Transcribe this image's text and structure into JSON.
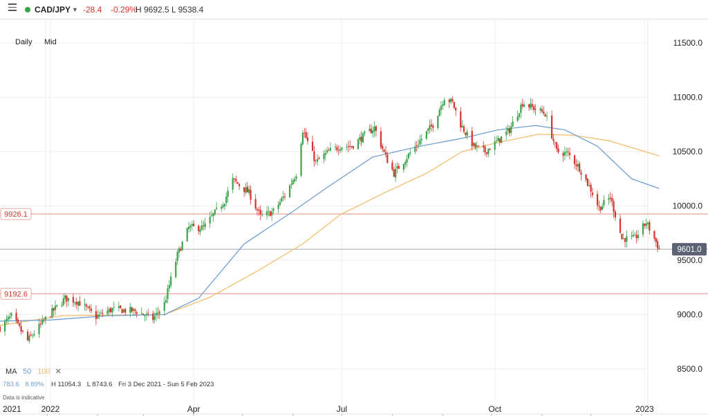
{
  "header": {
    "symbol": "CAD/JPY",
    "change": "-28.4",
    "change_pct": "-0.29%",
    "high_low": "H 9692.5  L 9538.4",
    "status_color": "#3aa34a",
    "menu_icon": "hamburger-menu-icon",
    "dropdown_icon": "caret-down-icon"
  },
  "chart_meta": {
    "interval": "Daily",
    "price_type": "Mid",
    "ma_label": "MA",
    "ma50_label": "50",
    "ma100_label": "100",
    "ma_close_icon": "close-icon",
    "stats_left1": "783.6",
    "stats_left2": "8.89%",
    "stats_high": "H 11054.3",
    "stats_low": "L 8743.6",
    "stats_range": "Fri 3 Dec 2021 - Sun 5 Feb 2023",
    "disclaimer": "Data is indicative",
    "colors": {
      "up": "#3aa34a",
      "down": "#d9312b",
      "ma50": "#6f9fd1",
      "ma100": "#f2be6e",
      "hline": "#e58a84",
      "last": "#5a6274",
      "axis": "#222222"
    }
  },
  "chart_data": {
    "type": "candlestick",
    "y_ticks": [
      8500.0,
      9000.0,
      9500.0,
      10000.0,
      10500.0,
      11000.0,
      11500.0
    ],
    "y_tick_labels": [
      "8500.0",
      "9000.0",
      "9500.0",
      "10000.0",
      "10500.0",
      "11000.0",
      "11500.0"
    ],
    "ylim": [
      8250,
      11700
    ],
    "x_labels": [
      "2021",
      "2022",
      "Apr",
      "Jul",
      "Oct",
      "2023"
    ],
    "x_label_dates": [
      "2021-12-31",
      "2022-01-03",
      "2022-04-01",
      "2022-07-01",
      "2022-10-03",
      "2023-01-03"
    ],
    "date_range": [
      "2021-12-03",
      "2023-02-05"
    ],
    "horizontal_levels": [
      {
        "label": "9926.1",
        "value": 9926.1
      },
      {
        "label": "9192.6",
        "value": 9192.6
      }
    ],
    "last_price": {
      "label": "9601.0",
      "value": 9601.0
    },
    "price_path": [
      [
        "2021-12-03",
        8880
      ],
      [
        "2021-12-10",
        8985
      ],
      [
        "2021-12-20",
        8760
      ],
      [
        "2021-12-31",
        8960
      ],
      [
        "2022-01-12",
        9150
      ],
      [
        "2022-01-20",
        9120
      ],
      [
        "2022-01-31",
        8980
      ],
      [
        "2022-02-10",
        9050
      ],
      [
        "2022-02-25",
        9030
      ],
      [
        "2022-03-07",
        8960
      ],
      [
        "2022-03-14",
        9100
      ],
      [
        "2022-03-22",
        9550
      ],
      [
        "2022-03-29",
        9800
      ],
      [
        "2022-04-07",
        9800
      ],
      [
        "2022-04-20",
        10050
      ],
      [
        "2022-04-25",
        10240
      ],
      [
        "2022-05-05",
        10120
      ],
      [
        "2022-05-12",
        9900
      ],
      [
        "2022-05-20",
        9950
      ],
      [
        "2022-05-27",
        10100
      ],
      [
        "2022-06-03",
        10300
      ],
      [
        "2022-06-07",
        10700
      ],
      [
        "2022-06-15",
        10400
      ],
      [
        "2022-06-23",
        10500
      ],
      [
        "2022-06-30",
        10550
      ],
      [
        "2022-07-07",
        10550
      ],
      [
        "2022-07-15",
        10650
      ],
      [
        "2022-07-21",
        10720
      ],
      [
        "2022-07-28",
        10450
      ],
      [
        "2022-08-02",
        10300
      ],
      [
        "2022-08-10",
        10450
      ],
      [
        "2022-08-18",
        10600
      ],
      [
        "2022-08-26",
        10750
      ],
      [
        "2022-09-02",
        11000
      ],
      [
        "2022-09-07",
        10950
      ],
      [
        "2022-09-12",
        10750
      ],
      [
        "2022-09-20",
        10550
      ],
      [
        "2022-09-27",
        10500
      ],
      [
        "2022-10-05",
        10600
      ],
      [
        "2022-10-12",
        10700
      ],
      [
        "2022-10-20",
        10950
      ],
      [
        "2022-10-27",
        10900
      ],
      [
        "2022-11-03",
        10850
      ],
      [
        "2022-11-10",
        10500
      ],
      [
        "2022-11-17",
        10480
      ],
      [
        "2022-11-24",
        10350
      ],
      [
        "2022-12-01",
        10150
      ],
      [
        "2022-12-06",
        9980
      ],
      [
        "2022-12-13",
        10080
      ],
      [
        "2022-12-20",
        9700
      ],
      [
        "2022-12-28",
        9700
      ],
      [
        "2023-01-04",
        9850
      ],
      [
        "2023-01-09",
        9700
      ],
      [
        "2023-01-12",
        9601
      ]
    ],
    "ma50_path": [
      [
        "2021-12-03",
        8940
      ],
      [
        "2022-01-03",
        8950
      ],
      [
        "2022-02-07",
        8990
      ],
      [
        "2022-03-14",
        9000
      ],
      [
        "2022-04-04",
        9150
      ],
      [
        "2022-05-02",
        9650
      ],
      [
        "2022-06-01",
        9950
      ],
      [
        "2022-06-20",
        10150
      ],
      [
        "2022-07-20",
        10450
      ],
      [
        "2022-08-18",
        10550
      ],
      [
        "2022-09-12",
        10620
      ],
      [
        "2022-10-05",
        10700
      ],
      [
        "2022-10-28",
        10740
      ],
      [
        "2022-11-15",
        10700
      ],
      [
        "2022-12-05",
        10550
      ],
      [
        "2022-12-26",
        10250
      ],
      [
        "2023-01-12",
        10160
      ]
    ],
    "ma100_path": [
      [
        "2021-12-03",
        8900
      ],
      [
        "2022-01-10",
        8990
      ],
      [
        "2022-03-14",
        9000
      ],
      [
        "2022-04-11",
        9160
      ],
      [
        "2022-05-10",
        9400
      ],
      [
        "2022-06-07",
        9650
      ],
      [
        "2022-06-30",
        9920
      ],
      [
        "2022-07-27",
        10120
      ],
      [
        "2022-08-22",
        10300
      ],
      [
        "2022-09-13",
        10500
      ],
      [
        "2022-10-04",
        10580
      ],
      [
        "2022-10-30",
        10660
      ],
      [
        "2022-11-20",
        10650
      ],
      [
        "2022-12-12",
        10600
      ],
      [
        "2023-01-12",
        10460
      ]
    ]
  }
}
